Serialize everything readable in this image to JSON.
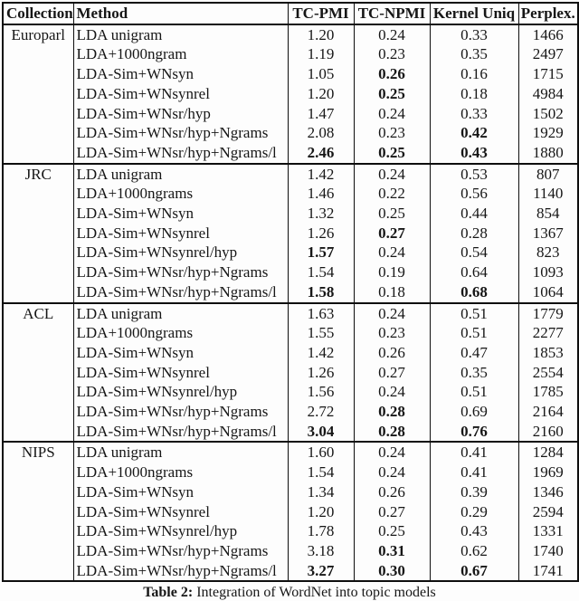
{
  "table": {
    "headers": [
      "Collection",
      "Method",
      "TC-PMI",
      "TC-NPMI",
      "Kernel Uniq",
      "Perplex."
    ],
    "columns_keys": [
      "method",
      "tc_pmi",
      "tc_npmi",
      "kernel_uniq",
      "perplex"
    ],
    "sections": [
      {
        "collection": "Europarl",
        "rows": [
          {
            "method": "LDA unigram",
            "tc_pmi": "1.20",
            "tc_npmi": "0.24",
            "kernel_uniq": "0.33",
            "perplex": "1466",
            "bold": []
          },
          {
            "method": "LDA+1000ngram",
            "tc_pmi": "1.19",
            "tc_npmi": "0.23",
            "kernel_uniq": "0.35",
            "perplex": "2497",
            "bold": []
          },
          {
            "method": "LDA-Sim+WNsyn",
            "tc_pmi": "1.05",
            "tc_npmi": "0.26",
            "kernel_uniq": "0.16",
            "perplex": "1715",
            "bold": [
              "tc_npmi"
            ]
          },
          {
            "method": "LDA-Sim+WNsynrel",
            "tc_pmi": "1.20",
            "tc_npmi": "0.25",
            "kernel_uniq": "0.18",
            "perplex": "4984",
            "bold": [
              "tc_npmi"
            ]
          },
          {
            "method": "LDA-Sim+WNsr/hyp",
            "tc_pmi": "1.47",
            "tc_npmi": "0.24",
            "kernel_uniq": "0.33",
            "perplex": "1502",
            "bold": []
          },
          {
            "method": "LDA-Sim+WNsr/hyp+Ngrams",
            "tc_pmi": "2.08",
            "tc_npmi": "0.23",
            "kernel_uniq": "0.42",
            "perplex": "1929",
            "bold": [
              "kernel_uniq"
            ]
          },
          {
            "method": "LDA-Sim+WNsr/hyp+Ngrams/l",
            "tc_pmi": "2.46",
            "tc_npmi": "0.25",
            "kernel_uniq": "0.43",
            "perplex": "1880",
            "bold": [
              "tc_pmi",
              "tc_npmi",
              "kernel_uniq"
            ]
          }
        ]
      },
      {
        "collection": "JRC",
        "rows": [
          {
            "method": "LDA unigram",
            "tc_pmi": "1.42",
            "tc_npmi": "0.24",
            "kernel_uniq": "0.53",
            "perplex": "807",
            "bold": []
          },
          {
            "method": "LDA+1000ngrams",
            "tc_pmi": "1.46",
            "tc_npmi": "0.22",
            "kernel_uniq": "0.56",
            "perplex": "1140",
            "bold": []
          },
          {
            "method": "LDA-Sim+WNsyn",
            "tc_pmi": "1.32",
            "tc_npmi": "0.25",
            "kernel_uniq": "0.44",
            "perplex": "854",
            "bold": []
          },
          {
            "method": "LDA-Sim+WNsynrel",
            "tc_pmi": "1.26",
            "tc_npmi": "0.27",
            "kernel_uniq": "0.28",
            "perplex": "1367",
            "bold": [
              "tc_npmi"
            ]
          },
          {
            "method": "LDA-Sim+WNsynrel/hyp",
            "tc_pmi": "1.57",
            "tc_npmi": "0.24",
            "kernel_uniq": "0.54",
            "perplex": "823",
            "bold": [
              "tc_pmi"
            ]
          },
          {
            "method": "LDA-Sim+WNsr/hyp+Ngrams",
            "tc_pmi": "1.54",
            "tc_npmi": "0.19",
            "kernel_uniq": "0.64",
            "perplex": "1093",
            "bold": []
          },
          {
            "method": "LDA-Sim+WNsr/hyp+Ngrams/l",
            "tc_pmi": "1.58",
            "tc_npmi": "0.18",
            "kernel_uniq": "0.68",
            "perplex": "1064",
            "bold": [
              "tc_pmi",
              "kernel_uniq"
            ]
          }
        ]
      },
      {
        "collection": "ACL",
        "rows": [
          {
            "method": "LDA unigram",
            "tc_pmi": "1.63",
            "tc_npmi": "0.24",
            "kernel_uniq": "0.51",
            "perplex": "1779",
            "bold": []
          },
          {
            "method": "LDA+1000ngrams",
            "tc_pmi": "1.55",
            "tc_npmi": "0.23",
            "kernel_uniq": "0.51",
            "perplex": "2277",
            "bold": []
          },
          {
            "method": "LDA-Sim+WNsyn",
            "tc_pmi": "1.42",
            "tc_npmi": "0.26",
            "kernel_uniq": "0.47",
            "perplex": "1853",
            "bold": []
          },
          {
            "method": "LDA-Sim+WNsynrel",
            "tc_pmi": "1.26",
            "tc_npmi": "0.27",
            "kernel_uniq": "0.35",
            "perplex": "2554",
            "bold": []
          },
          {
            "method": "LDA-Sim+WNsynrel/hyp",
            "tc_pmi": "1.56",
            "tc_npmi": "0.24",
            "kernel_uniq": "0.51",
            "perplex": "1785",
            "bold": []
          },
          {
            "method": "LDA-Sim+WNsr/hyp+Ngrams",
            "tc_pmi": "2.72",
            "tc_npmi": "0.28",
            "kernel_uniq": "0.69",
            "perplex": "2164",
            "bold": [
              "tc_npmi"
            ]
          },
          {
            "method": "LDA-Sim+WNsr/hyp+Ngrams/l",
            "tc_pmi": "3.04",
            "tc_npmi": "0.28",
            "kernel_uniq": "0.76",
            "perplex": "2160",
            "bold": [
              "tc_pmi",
              "tc_npmi",
              "kernel_uniq"
            ]
          }
        ]
      },
      {
        "collection": "NIPS",
        "rows": [
          {
            "method": "LDA unigram",
            "tc_pmi": "1.60",
            "tc_npmi": "0.24",
            "kernel_uniq": "0.41",
            "perplex": "1284",
            "bold": []
          },
          {
            "method": "LDA+1000ngrams",
            "tc_pmi": "1.54",
            "tc_npmi": "0.24",
            "kernel_uniq": "0.41",
            "perplex": "1969",
            "bold": []
          },
          {
            "method": "LDA-Sim+WNsyn",
            "tc_pmi": "1.34",
            "tc_npmi": "0.26",
            "kernel_uniq": "0.39",
            "perplex": "1346",
            "bold": []
          },
          {
            "method": "LDA-Sim+WNsynrel",
            "tc_pmi": "1.20",
            "tc_npmi": "0.27",
            "kernel_uniq": "0.29",
            "perplex": "2594",
            "bold": []
          },
          {
            "method": "LDA-Sim+WNsynrel/hyp",
            "tc_pmi": "1.78",
            "tc_npmi": "0.25",
            "kernel_uniq": "0.43",
            "perplex": "1331",
            "bold": []
          },
          {
            "method": "LDA-Sim+WNsr/hyp+Ngrams",
            "tc_pmi": "3.18",
            "tc_npmi": "0.31",
            "kernel_uniq": "0.62",
            "perplex": "1740",
            "bold": [
              "tc_npmi"
            ]
          },
          {
            "method": "LDA-Sim+WNsr/hyp+Ngrams/l",
            "tc_pmi": "3.27",
            "tc_npmi": "0.30",
            "kernel_uniq": "0.67",
            "perplex": "1741",
            "bold": [
              "tc_pmi",
              "tc_npmi",
              "kernel_uniq"
            ]
          }
        ]
      }
    ]
  },
  "caption": {
    "label": "Table 2:",
    "text": " Integration of WordNet into topic models"
  },
  "colors": {
    "ink": "#161616",
    "background": "#fdfdfd"
  }
}
